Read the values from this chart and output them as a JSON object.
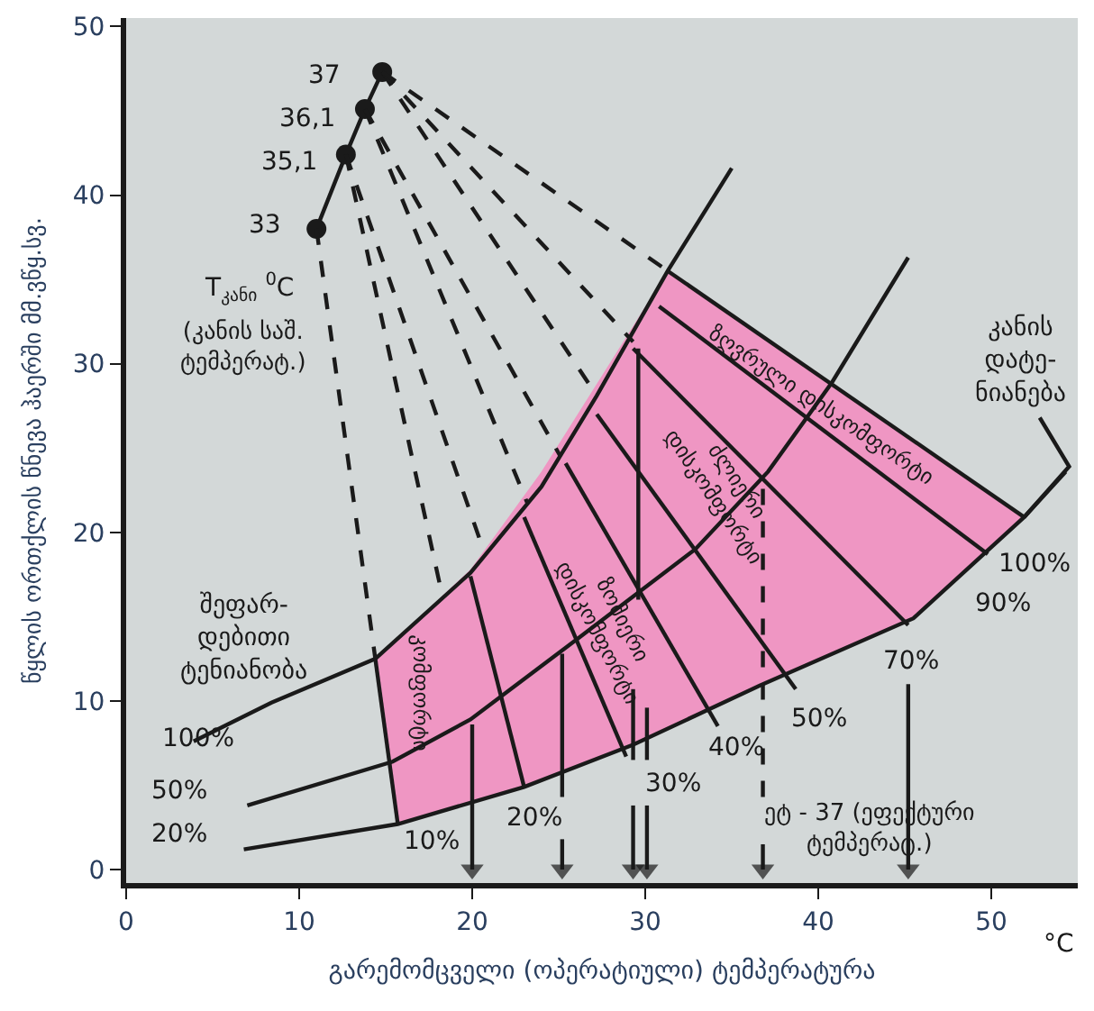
{
  "chart_data": {
    "type": "line",
    "xlabel": "გარემომცველი (ოპერატიული) ტემპერატურა",
    "ylabel": "წყლის ორთქლის წნევა ჰაერში მმ.ვწყ.სვ.",
    "xlim": [
      0,
      55
    ],
    "ylim": [
      -0.8,
      50.5
    ],
    "xticks": [
      0,
      10,
      20,
      30,
      40,
      50
    ],
    "yticks": [
      0,
      10,
      20,
      30,
      40,
      50
    ],
    "grid": false,
    "series": [
      {
        "type": "area",
        "color": "#ef96c3",
        "x": [
          14.4,
          15.7,
          23.0,
          29.3,
          36.6,
          45.5,
          51.9,
          31.3,
          27.2,
          24.0,
          19.9
        ],
        "values": [
          12.5,
          2.7,
          4.9,
          7.4,
          10.9,
          14.9,
          20.9,
          35.5,
          28.8,
          23.6,
          17.8
        ]
      },
      {
        "color": "#1a1a1a",
        "line_style": "solid",
        "x": [
          3.9,
          8.4,
          14.4,
          19.9,
          24.0,
          27.2,
          31.3,
          35.0,
          null,
          7.0,
          15.4,
          19.9,
          26.1,
          32.9,
          37.1,
          40.8,
          45.2,
          null,
          6.8,
          15.7,
          23.0,
          29.3,
          36.6,
          45.5,
          51.9,
          54.3,
          null,
          14.4,
          15.7,
          null,
          31.3,
          51.9,
          null,
          30.8,
          49.8,
          null,
          29.3,
          45.2,
          null,
          27.2,
          38.7,
          null,
          25.4,
          34.2,
          null,
          23.0,
          28.9,
          null,
          19.9,
          23.0,
          null,
          29.6,
          29.6,
          null,
          52.8,
          54.5,
          51.9,
          null,
          25.2,
          25.2,
          null,
          29.3,
          29.3,
          null,
          30.1,
          30.1
        ],
        "values": [
          7.6,
          9.9,
          12.5,
          17.6,
          22.7,
          28.1,
          35.5,
          41.6,
          null,
          3.8,
          6.4,
          8.9,
          13.7,
          19.0,
          23.6,
          28.9,
          36.3,
          null,
          1.2,
          2.7,
          4.9,
          7.4,
          10.9,
          14.9,
          20.9,
          23.6,
          null,
          12.5,
          2.7,
          null,
          35.5,
          20.9,
          null,
          33.4,
          18.7,
          null,
          30.9,
          14.5,
          null,
          27.0,
          10.7,
          null,
          24.1,
          8.5,
          null,
          20.9,
          6.7,
          null,
          17.4,
          4.9,
          null,
          30.9,
          16.0,
          null,
          26.8,
          23.9,
          20.9,
          null,
          12.8,
          4.3,
          null,
          10.7,
          6.5,
          null,
          9.6,
          6.5
        ]
      },
      {
        "color": "#1a1a1a",
        "line_style": "solid",
        "marker": "circle",
        "x": [
          11.0,
          12.7,
          13.8,
          14.8
        ],
        "values": [
          38.0,
          42.4,
          45.1,
          47.3
        ]
      },
      {
        "color": "#1a1a1a",
        "line_style": "dashed",
        "x": [
          11.0,
          14.4,
          null,
          12.7,
          18.3,
          null,
          12.7,
          20.7,
          null,
          13.8,
          23.2,
          null,
          13.8,
          25.1,
          null,
          14.8,
          27.2,
          null,
          14.8,
          29.3,
          null,
          14.8,
          31.3,
          null,
          36.8,
          36.8
        ],
        "values": [
          38.0,
          12.5,
          null,
          42.4,
          16.1,
          null,
          42.4,
          18.8,
          null,
          45.1,
          21.7,
          null,
          45.1,
          24.5,
          null,
          47.3,
          28.1,
          null,
          47.3,
          31.3,
          null,
          47.3,
          35.5,
          null,
          4.3,
          23.5
        ]
      },
      {
        "color": "#1a1a1a",
        "line_style": "solid",
        "marker": "triangle",
        "x": [
          20.0,
          20.0,
          null,
          25.2,
          25.2,
          null,
          29.3,
          29.3,
          null,
          30.1,
          30.1,
          null,
          36.8,
          36.8,
          null,
          45.2,
          45.2
        ],
        "values": [
          8.6,
          0,
          null,
          1.8,
          0,
          null,
          3.8,
          0,
          null,
          3.8,
          0,
          null,
          1.5,
          0,
          null,
          11.0,
          0
        ]
      }
    ],
    "annotations": [
      "37",
      "36,1",
      "35,1",
      "33",
      "T$_{კანი}$ $^{0}$C",
      "(კანის საშ.\nტემპერატ.)",
      "შეფარ-\nდებითი\nტენიანობა",
      "100%",
      "50%",
      "20%",
      "10%",
      "20%",
      "30%",
      "40%",
      "50%",
      "70%",
      "90%",
      "100%",
      "კანის\nდატე-\nნიანება",
      "ეტ - 37 (ეფექტური\nტემპერატ.)",
      "ზღვრული დისკომფორტი",
      "ძლიერი\nდისკომფორტი",
      "ზომიერი\nდისკომფორტი",
      "კომფორტი",
      "°C"
    ]
  }
}
